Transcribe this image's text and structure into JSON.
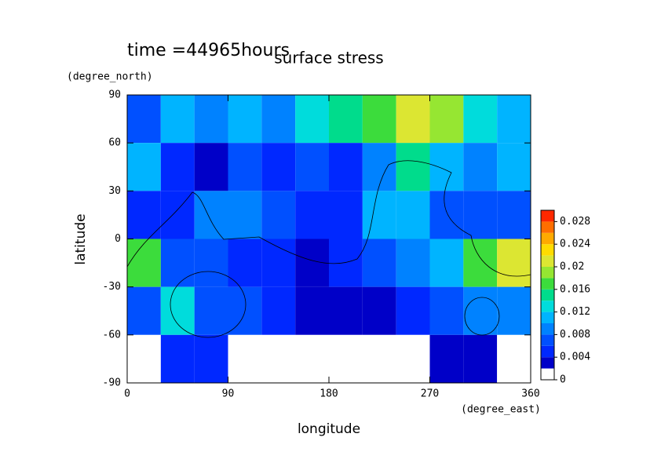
{
  "chart_data": {
    "type": "contour",
    "title": "surface stress",
    "time_label": "time =44965hours",
    "xlabel": "longitude",
    "ylabel": "latitude",
    "xunit": "(degree_east)",
    "yunit": "(degree_north)",
    "x_edges": [
      0,
      30,
      60,
      90,
      120,
      150,
      180,
      210,
      240,
      270,
      300,
      330,
      360
    ],
    "y_edges": [
      90,
      60,
      30,
      0,
      -30,
      -60,
      -90
    ],
    "z": [
      [
        0.006,
        0.01,
        0.008,
        0.01,
        0.008,
        0.012,
        0.014,
        0.016,
        0.02,
        0.018,
        0.012,
        0.01
      ],
      [
        0.01,
        0.004,
        0.002,
        0.006,
        0.004,
        0.006,
        0.004,
        0.008,
        0.014,
        0.01,
        0.008,
        0.01
      ],
      [
        0.004,
        0.004,
        0.008,
        0.008,
        0.006,
        0.004,
        0.004,
        0.01,
        0.01,
        0.006,
        0.006,
        0.006
      ],
      [
        0.016,
        0.006,
        0.006,
        0.004,
        0.004,
        0.002,
        0.004,
        0.006,
        0.008,
        0.01,
        0.016,
        0.02
      ],
      [
        0.006,
        0.012,
        0.006,
        0.006,
        0.004,
        0.002,
        0.002,
        0.002,
        0.004,
        0.006,
        0.008,
        0.008
      ],
      [
        0,
        0.004,
        0.004,
        0,
        0,
        0,
        0,
        0,
        0,
        0.002,
        0.002,
        0
      ]
    ],
    "xlim": [
      0,
      360
    ],
    "xticks": [
      0,
      90,
      180,
      270,
      360
    ],
    "ylim": [
      -90,
      90
    ],
    "yticks": [
      -90,
      -60,
      -30,
      0,
      30,
      60,
      90
    ],
    "clim": [
      0,
      0.03
    ],
    "cticks": [
      0,
      0.004,
      0.008,
      0.012,
      0.016,
      0.02,
      0.024,
      0.028
    ],
    "colors": [
      "#ffffff",
      "#0000c8",
      "#0028ff",
      "#0050ff",
      "#0082ff",
      "#00b4ff",
      "#00dcdc",
      "#00dc8c",
      "#3cdc3c",
      "#96e632",
      "#dce632",
      "#ffdc00",
      "#ffaa00",
      "#ff6e00",
      "#ff2800"
    ]
  }
}
